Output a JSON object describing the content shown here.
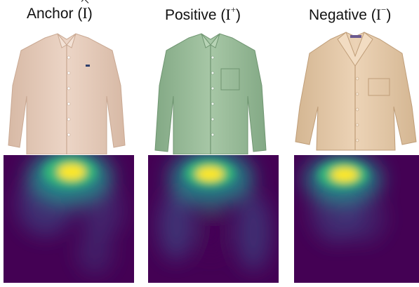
{
  "columns": [
    {
      "label": "Anchor",
      "symbol": "I",
      "mark": "hat",
      "shirt_color": "#ecd5c6",
      "shirt_shadow": "#d7b9a5"
    },
    {
      "label": "Positive",
      "symbol": "I",
      "mark": "+",
      "shirt_color": "#a7c7a6",
      "shirt_shadow": "#83a985"
    },
    {
      "label": "Negative",
      "symbol": "I",
      "mark": "−",
      "shirt_color": "#ecd3b6",
      "shirt_shadow": "#d4b692"
    }
  ],
  "heatmap_colors": {
    "low": "#440154",
    "mid": "#31688e",
    "green": "#35b779",
    "high": "#fde725"
  }
}
